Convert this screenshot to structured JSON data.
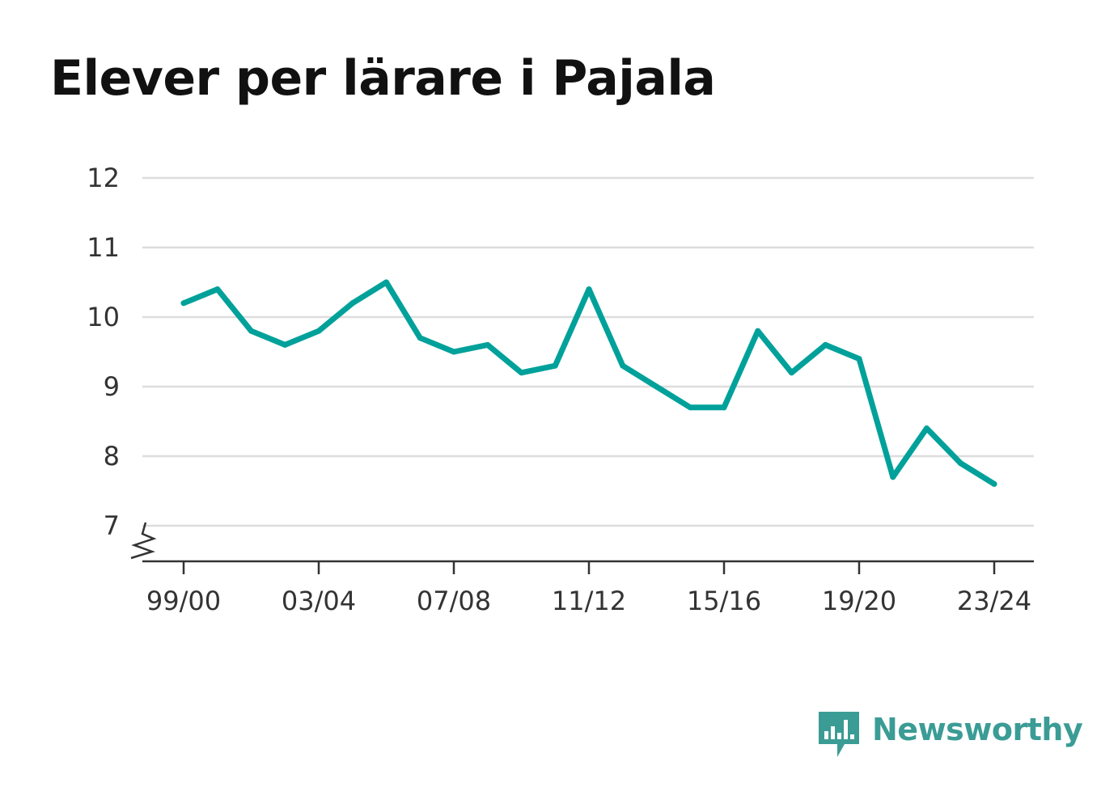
{
  "chart_data": {
    "type": "line",
    "title": "Elever per lärare i Pajala",
    "xlabel": "",
    "ylabel": "",
    "x_tick_labels": [
      "99/00",
      "03/04",
      "07/08",
      "11/12",
      "15/16",
      "19/20",
      "23/24"
    ],
    "x": [
      "99/00",
      "00/01",
      "01/02",
      "02/03",
      "03/04",
      "04/05",
      "05/06",
      "06/07",
      "07/08",
      "08/09",
      "09/10",
      "10/11",
      "11/12",
      "12/13",
      "13/14",
      "14/15",
      "15/16",
      "16/17",
      "17/18",
      "18/19",
      "19/20",
      "20/21",
      "21/22",
      "22/23",
      "23/24"
    ],
    "series": [
      {
        "values": [
          10.2,
          10.4,
          9.8,
          9.6,
          9.8,
          10.2,
          10.5,
          9.7,
          9.5,
          9.6,
          9.2,
          9.3,
          10.4,
          9.3,
          9.0,
          8.7,
          8.7,
          9.8,
          9.2,
          9.6,
          9.4,
          7.7,
          8.4,
          7.9,
          7.6
        ],
        "color": "#00a19a"
      }
    ],
    "y_ticks": [
      7,
      8,
      9,
      10,
      11,
      12
    ],
    "ylim": [
      7,
      12
    ],
    "y_axis_break": true,
    "grid": true,
    "gridline_color": "#dddddd"
  },
  "brand": {
    "name": "Newsworthy",
    "icon": "newsworthy-logo-icon",
    "color": "#3b9c95"
  }
}
